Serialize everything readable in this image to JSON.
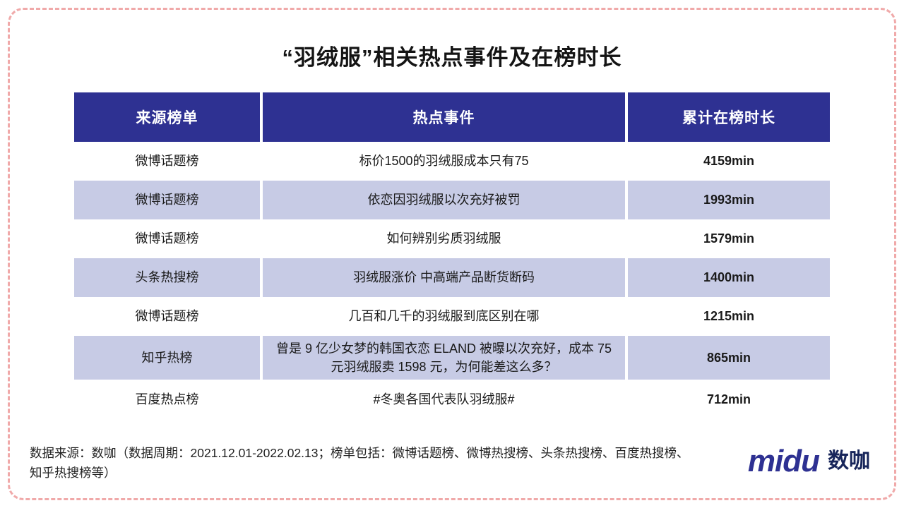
{
  "title": "“羽绒服”相关热点事件及在榜时长",
  "chart_data": {
    "type": "table",
    "title": "“羽绒服”相关热点事件及在榜时长",
    "columns": [
      "来源榜单",
      "热点事件",
      "累计在榜时长"
    ],
    "rows": [
      {
        "source": "微博话题榜",
        "event": "标价1500的羽绒服成本只有75",
        "duration": "4159min"
      },
      {
        "source": "微博话题榜",
        "event": "依恋因羽绒服以次充好被罚",
        "duration": "1993min"
      },
      {
        "source": "微博话题榜",
        "event": "如何辨别劣质羽绒服",
        "duration": "1579min"
      },
      {
        "source": "头条热搜榜",
        "event": "羽绒服涨价 中高端产品断货断码",
        "duration": "1400min"
      },
      {
        "source": "微博话题榜",
        "event": "几百和几千的羽绒服到底区别在哪",
        "duration": "1215min"
      },
      {
        "source": "知乎热榜",
        "event": "曾是 9 亿少女梦的韩国衣恋 ELAND 被曝以次充好，成本 75 元羽绒服卖 1598 元，为何能差这么多？",
        "duration": "865min"
      },
      {
        "source": "百度热点榜",
        "event": "#冬奥各国代表队羽绒服#",
        "duration": "712min"
      }
    ],
    "durations_min": [
      4159,
      1993,
      1579,
      1400,
      1215,
      865,
      712
    ]
  },
  "footer": {
    "source_note": "数据来源：数咖（数据周期：2021.12.01-2022.02.13；榜单包括：微博话题榜、微博热搜榜、头条热搜榜、百度热搜榜、知乎热搜榜等）",
    "logo_midu": "midu",
    "logo_shuka": "数咖"
  },
  "colors": {
    "header_bg": "#2E3192",
    "row_alt_bg": "#C7CBE5",
    "border": "#F0A9A9",
    "logo_blue": "#2E3192"
  }
}
